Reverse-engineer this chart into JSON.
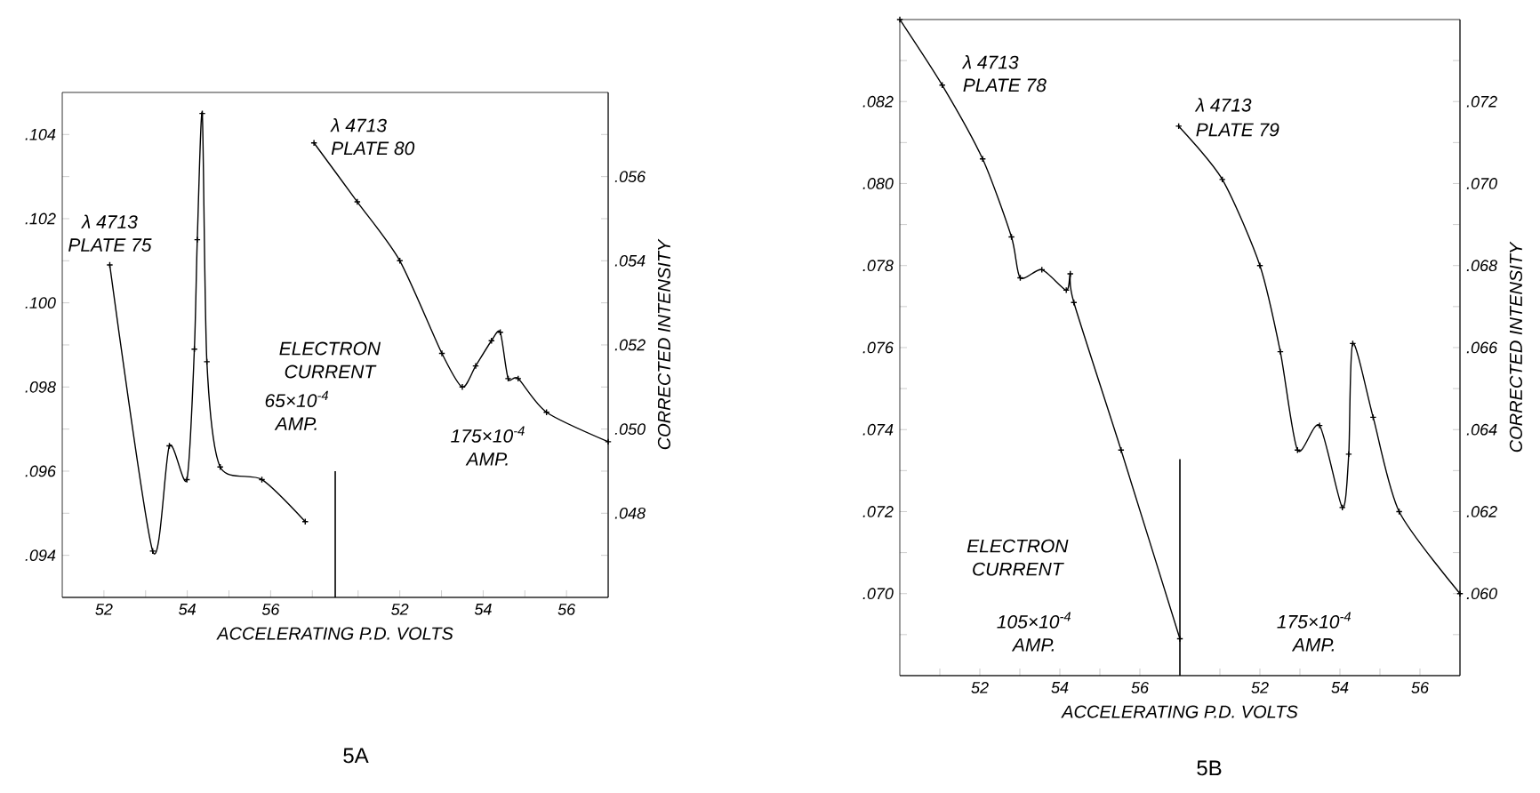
{
  "chart_data": [
    {
      "type": "line",
      "xlabel": "ACCELERATING P.D. VOLTS",
      "marker": "cross",
      "line_style": "solid",
      "xlim": [
        51,
        64.1
      ],
      "xticks": [
        52,
        {
          "value": 53,
          "label": null
        },
        54,
        {
          "value": 55,
          "label": null
        },
        56,
        {
          "value": 57,
          "label": null
        }
      ],
      "ylim": [
        0.093,
        0.105
      ],
      "yticks": [
        {
          "value": 0.094,
          "label": ".094"
        },
        {
          "value": 0.095,
          "label": null
        },
        {
          "value": 0.096,
          "label": ".096"
        },
        {
          "value": 0.097,
          "label": null
        },
        {
          "value": 0.098,
          "label": ".098"
        },
        {
          "value": 0.099,
          "label": null
        },
        {
          "value": 0.1,
          "label": ".100"
        },
        {
          "value": 0.101,
          "label": null
        },
        {
          "value": 0.102,
          "label": ".102"
        },
        {
          "value": 0.103,
          "label": null
        },
        {
          "value": 0.104,
          "label": ".104"
        }
      ],
      "series": [
        {
          "name": "PLATE 75",
          "color": "#000000",
          "x": [
            52.14,
            53.17,
            53.57,
            53.99,
            54.17,
            54.24,
            54.36,
            54.47,
            54.79,
            55.79,
            56.83
          ],
          "values": [
            0.1009,
            0.0941,
            0.0966,
            0.0958,
            0.0989,
            0.1015,
            0.1045,
            0.0986,
            0.0961,
            0.0958,
            0.0948
          ]
        }
      ],
      "ref_lines": [
        {
          "axis": "x",
          "value": 57.55
        }
      ],
      "annotations": [
        "λ 4713",
        "ELECTRON CURRENT",
        "65×10$^{-4}$ AMP.",
        "5A"
      ]
    },
    {
      "type": "line",
      "ylabel": "CORRECTED INTENSITY",
      "marker": "cross",
      "line_style": "solid",
      "xlim": [
        43.9,
        57
      ],
      "xticks": [
        {
          "value": 51,
          "label": null
        },
        52,
        {
          "value": 53,
          "label": null
        },
        54,
        {
          "value": 55,
          "label": null
        },
        56
      ],
      "ylim": [
        0.046,
        0.058
      ],
      "yticks": [
        {
          "value": 0.047,
          "label": null
        },
        {
          "value": 0.048,
          "label": ".048"
        },
        {
          "value": 0.049,
          "label": null
        },
        {
          "value": 0.05,
          "label": ".050"
        },
        {
          "value": 0.051,
          "label": null
        },
        {
          "value": 0.052,
          "label": ".052"
        },
        {
          "value": 0.053,
          "label": null
        },
        {
          "value": 0.054,
          "label": ".054"
        },
        {
          "value": 0.055,
          "label": null
        },
        {
          "value": 0.056,
          "label": ".056"
        },
        {
          "value": 0.057,
          "label": null
        }
      ],
      "series": [
        {
          "name": "PLATE 80",
          "color": "#000000",
          "x": [
            49.94,
            50.98,
            52.0,
            53.01,
            53.5,
            53.82,
            54.2,
            54.41,
            54.6,
            54.84,
            55.52,
            57.0
          ],
          "values": [
            0.0568,
            0.0554,
            0.054,
            0.0518,
            0.051,
            0.0515,
            0.0521,
            0.0523,
            0.0512,
            0.0512,
            0.0504,
            0.0497
          ]
        }
      ],
      "annotations": [
        "λ 4713",
        "175×10$^{-4}$ AMP."
      ]
    },
    {
      "type": "line",
      "xlabel": "ACCELERATING P.D. VOLTS",
      "marker": "cross",
      "line_style": "solid",
      "xlim": [
        50,
        64
      ],
      "xticks": [
        {
          "value": 51,
          "label": null
        },
        52,
        {
          "value": 53,
          "label": null
        },
        54,
        {
          "value": 55,
          "label": null
        },
        56
      ],
      "ylim": [
        0.068,
        0.084
      ],
      "yticks": [
        {
          "value": 0.069,
          "label": null
        },
        {
          "value": 0.07,
          "label": ".070"
        },
        {
          "value": 0.071,
          "label": null
        },
        {
          "value": 0.072,
          "label": ".072"
        },
        {
          "value": 0.073,
          "label": null
        },
        {
          "value": 0.074,
          "label": ".074"
        },
        {
          "value": 0.075,
          "label": null
        },
        {
          "value": 0.076,
          "label": ".076"
        },
        {
          "value": 0.077,
          "label": null
        },
        {
          "value": 0.078,
          "label": ".078"
        },
        {
          "value": 0.079,
          "label": null
        },
        {
          "value": 0.08,
          "label": ".080"
        },
        {
          "value": 0.081,
          "label": null
        },
        {
          "value": 0.082,
          "label": ".082"
        },
        {
          "value": 0.083,
          "label": null
        }
      ],
      "series": [
        {
          "name": "PLATE 78",
          "color": "#000000",
          "x": [
            50.0,
            51.06,
            52.07,
            52.79,
            53.01,
            53.55,
            54.16,
            54.26,
            54.35,
            55.53,
            57.0
          ],
          "values": [
            0.084,
            0.0824,
            0.0806,
            0.0787,
            0.0777,
            0.0779,
            0.0774,
            0.0778,
            0.0771,
            0.0735,
            0.0689
          ]
        }
      ],
      "ref_lines": [
        {
          "axis": "x",
          "value": 57
        }
      ],
      "annotations": [
        "λ 4713",
        "ELECTRON CURRENT",
        "105×10$^{-4}$ AMP.",
        "5B"
      ]
    },
    {
      "type": "line",
      "ylabel": "CORRECTED INTENSITY",
      "marker": "cross",
      "line_style": "solid",
      "xlim": [
        43,
        57
      ],
      "xticks": [
        {
          "value": 51,
          "label": null
        },
        52,
        {
          "value": 53,
          "label": null
        },
        54,
        {
          "value": 55,
          "label": null
        },
        56
      ],
      "ylim": [
        0.058,
        0.074
      ],
      "yticks": [
        {
          "value": 0.059,
          "label": null
        },
        {
          "value": 0.06,
          "label": ".060"
        },
        {
          "value": 0.061,
          "label": null
        },
        {
          "value": 0.062,
          "label": ".062"
        },
        {
          "value": 0.063,
          "label": null
        },
        {
          "value": 0.064,
          "label": ".064"
        },
        {
          "value": 0.065,
          "label": null
        },
        {
          "value": 0.066,
          "label": ".066"
        },
        {
          "value": 0.067,
          "label": null
        },
        {
          "value": 0.068,
          "label": ".068"
        },
        {
          "value": 0.069,
          "label": null
        },
        {
          "value": 0.07,
          "label": ".070"
        },
        {
          "value": 0.071,
          "label": null
        },
        {
          "value": 0.072,
          "label": ".072"
        },
        {
          "value": 0.073,
          "label": null
        }
      ],
      "series": [
        {
          "name": "PLATE 79",
          "color": "#000000",
          "x": [
            49.97,
            51.06,
            52.0,
            52.51,
            52.94,
            53.49,
            54.06,
            54.22,
            54.32,
            54.83,
            55.48,
            57.0
          ],
          "values": [
            0.0714,
            0.0701,
            0.068,
            0.0659,
            0.0635,
            0.0641,
            0.0621,
            0.0634,
            0.0661,
            0.0643,
            0.062,
            0.06
          ]
        }
      ],
      "annotations": [
        "λ 4713",
        "175×10$^{-4}$ AMP."
      ]
    }
  ]
}
